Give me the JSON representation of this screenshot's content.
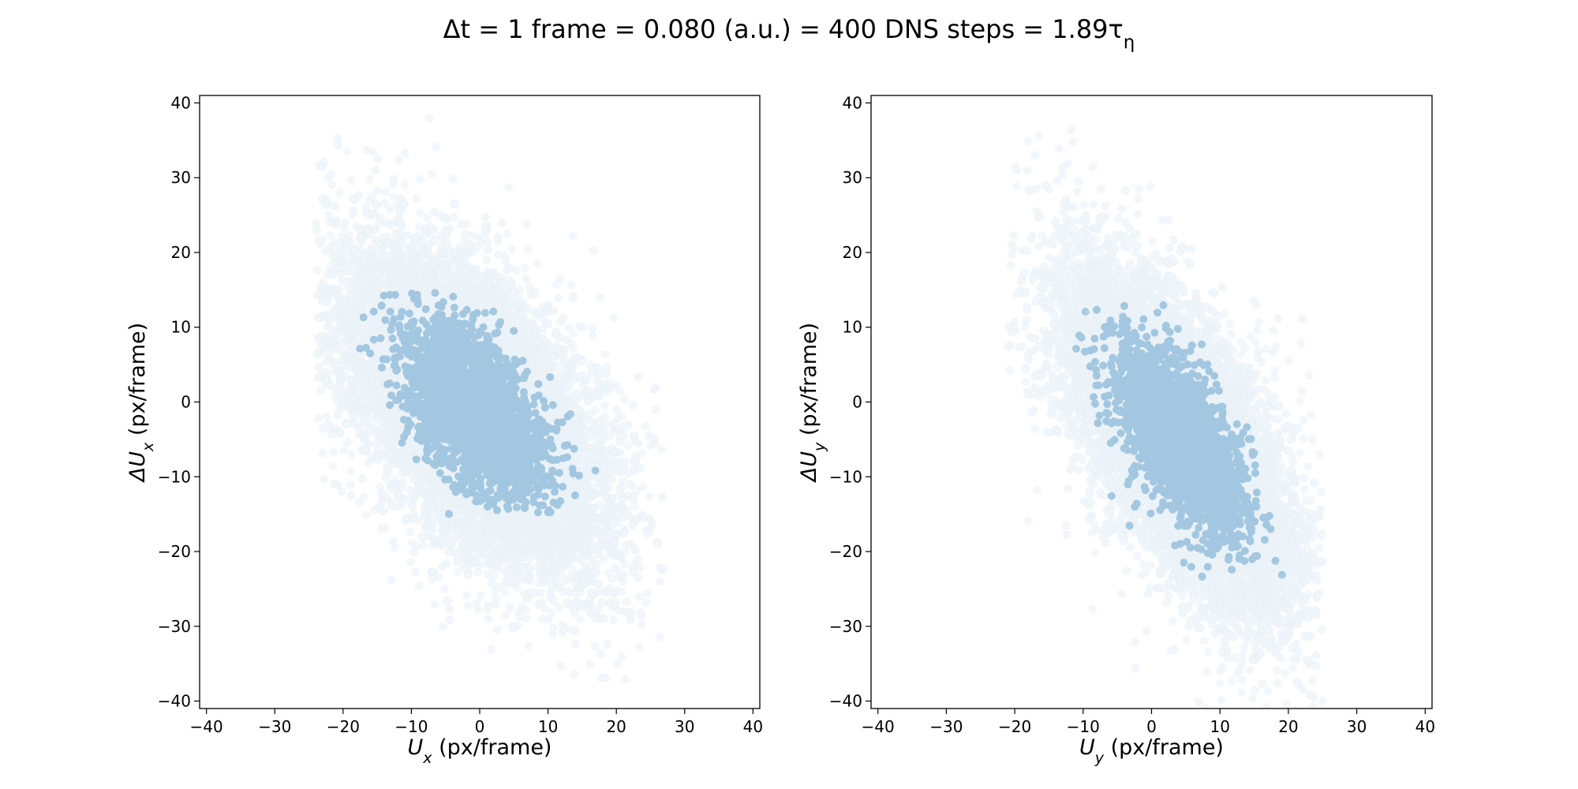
{
  "figure": {
    "title": "Δt = 1 frame = 0.080 (a.u.) = 400 DNS steps = 1.89τ",
    "title_subscript": "η"
  },
  "chart_data": [
    {
      "type": "scatter",
      "xlabel": "U",
      "xlabel_sub": "x",
      "xlabel_unit": " (px/frame)",
      "ylabel": "ΔU",
      "ylabel_sub": "x",
      "ylabel_unit": " (px/frame)",
      "xlim": [
        -41,
        41
      ],
      "ylim": [
        -41,
        41
      ],
      "xticks": [
        -40,
        -30,
        -20,
        -10,
        0,
        10,
        20,
        30,
        40
      ],
      "yticks": [
        -40,
        -30,
        -20,
        -10,
        0,
        10,
        20,
        30,
        40
      ],
      "tick_labels": [
        "−40",
        "−30",
        "−20",
        "−10",
        "0",
        "10",
        "20",
        "30",
        "40"
      ],
      "marker_color": "#1f77b4",
      "marker_alpha": 0.06,
      "grid": false,
      "legend": "none",
      "points": {
        "n": 14000,
        "x_range": [
          -24,
          27
        ],
        "y_range": [
          -38,
          39
        ],
        "center": [
          -1,
          -1
        ],
        "x_std": 8.5,
        "y_std": 9.5,
        "correlation": -0.55,
        "dense_core_x": [
          -18,
          21
        ],
        "dense_core_y": [
          -15,
          15
        ]
      }
    },
    {
      "type": "scatter",
      "xlabel": "U",
      "xlabel_sub": "y",
      "xlabel_unit": " (px/frame)",
      "ylabel": "ΔU",
      "ylabel_sub": "y",
      "ylabel_unit": " (px/frame)",
      "xlim": [
        -41,
        41
      ],
      "ylim": [
        -41,
        41
      ],
      "xticks": [
        -40,
        -30,
        -20,
        -10,
        0,
        10,
        20,
        30,
        40
      ],
      "yticks": [
        -40,
        -30,
        -20,
        -10,
        0,
        10,
        20,
        30,
        40
      ],
      "tick_labels": [
        "−40",
        "−30",
        "−20",
        "−10",
        "0",
        "10",
        "20",
        "30",
        "40"
      ],
      "marker_color": "#1f77b4",
      "marker_alpha": 0.06,
      "grid": false,
      "legend": "none",
      "points": {
        "n": 14000,
        "x_range": [
          -21,
          25
        ],
        "y_range": [
          -41,
          38
        ],
        "center": [
          4,
          -5
        ],
        "x_std": 7.5,
        "y_std": 10,
        "correlation": -0.65,
        "dense_core_x": [
          -12,
          21
        ],
        "dense_core_y": [
          -25,
          13
        ]
      }
    }
  ]
}
